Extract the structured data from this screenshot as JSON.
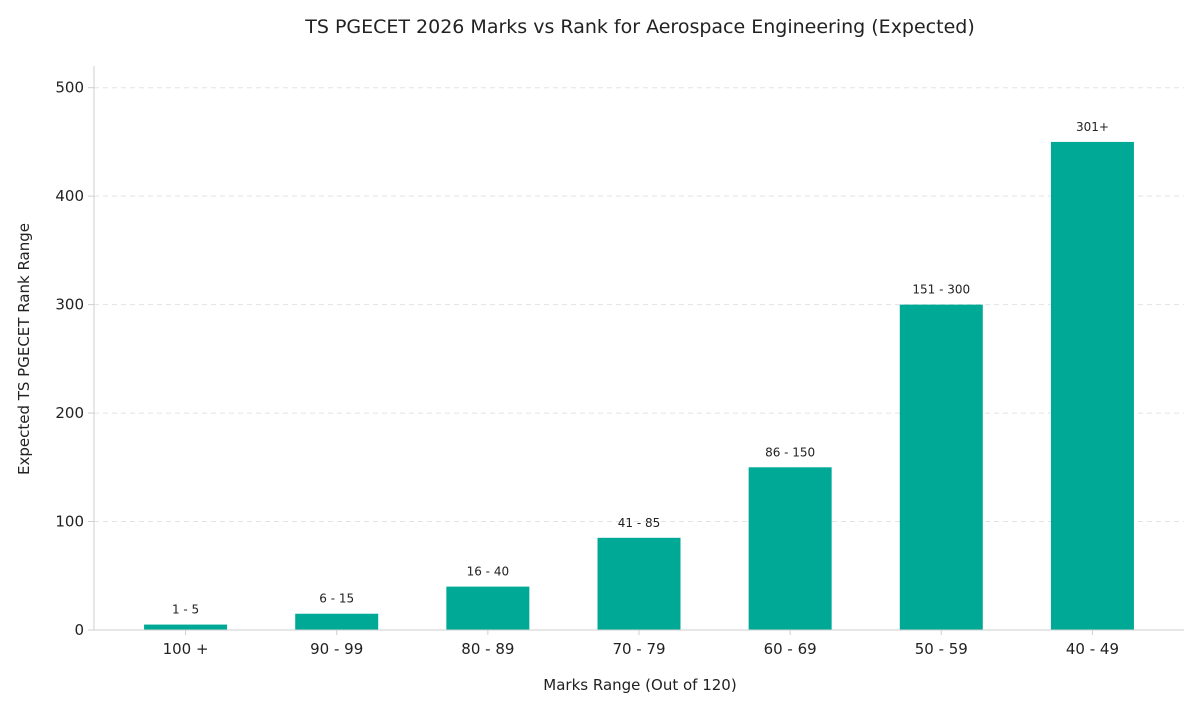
{
  "chart_data": {
    "type": "bar",
    "title": "TS PGECET 2026 Marks vs Rank for Aerospace Engineering (Expected)",
    "xlabel": "Marks Range (Out of 120)",
    "ylabel": "Expected TS PGECET Rank Range",
    "categories": [
      "100 +",
      "90 - 99",
      "80 - 89",
      "70 - 79",
      "60 - 69",
      "50 - 59",
      "40 - 49"
    ],
    "values": [
      5,
      15,
      40,
      85,
      150,
      300,
      450
    ],
    "data_labels": [
      "1 - 5",
      "6 - 15",
      "16 - 40",
      "41 - 85",
      "86 - 150",
      "151 - 300",
      "301+"
    ],
    "ylim": [
      0,
      520
    ],
    "yticks": [
      0,
      100,
      200,
      300,
      400,
      500
    ],
    "grid": true,
    "bar_color": "#00a896",
    "grid_color": "#e3e3e3",
    "axis_color": "#cfcfcf"
  }
}
